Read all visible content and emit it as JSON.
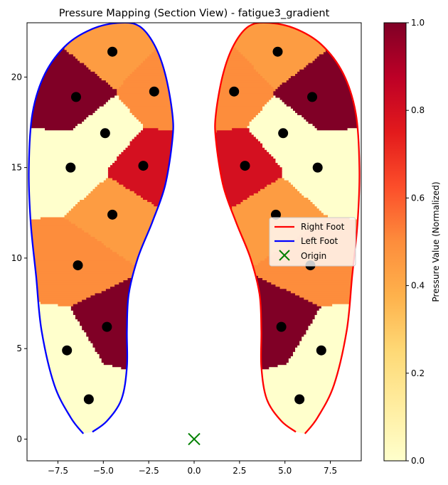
{
  "chart_data": {
    "type": "heatmap",
    "title": "Pressure Mapping (Section View) - fatigue3_gradient",
    "xlim": [
      -9.2,
      9.2
    ],
    "ylim": [
      -1.2,
      23.0
    ],
    "x_ticks": [
      -7.5,
      -5.0,
      -2.5,
      0.0,
      2.5,
      5.0,
      7.5
    ],
    "x_tick_labels": [
      "−7.5",
      "−5.0",
      "−2.5",
      "0.0",
      "2.5",
      "5.0",
      "7.5"
    ],
    "y_ticks": [
      0,
      5,
      10,
      15,
      20
    ],
    "y_tick_labels": [
      "0",
      "5",
      "10",
      "15",
      "20"
    ],
    "grid": false,
    "colorbar": {
      "label": "Pressure Value (Normalized)",
      "range": [
        0.0,
        1.0
      ],
      "ticks": [
        0.0,
        0.2,
        0.4,
        0.6,
        0.8,
        1.0
      ],
      "tick_labels": [
        "0.0",
        "0.2",
        "0.4",
        "0.6",
        "0.8",
        "1.0"
      ],
      "colormap": "YlOrRd",
      "stops": [
        "#ffffcc",
        "#ffeda0",
        "#fed976",
        "#feb24c",
        "#fd8d3c",
        "#fc4e2a",
        "#e31a1c",
        "#bd0026",
        "#800026"
      ]
    },
    "legend": {
      "placement": "center-right",
      "entries": [
        {
          "label": "Right Foot",
          "kind": "line",
          "color": "#ff0000"
        },
        {
          "label": "Left Foot",
          "kind": "line",
          "color": "#0000ff"
        },
        {
          "label": "Origin",
          "kind": "x-marker",
          "color": "#008000"
        }
      ]
    },
    "origin": {
      "x": 0,
      "y": 0
    },
    "sensors": [
      {
        "foot": "left",
        "x": -4.5,
        "y": 21.4,
        "value": 0.45
      },
      {
        "foot": "left",
        "x": -6.5,
        "y": 18.9,
        "value": 1.0
      },
      {
        "foot": "left",
        "x": -2.2,
        "y": 19.2,
        "value": 0.5
      },
      {
        "foot": "left",
        "x": -4.9,
        "y": 16.9,
        "value": 0.0
      },
      {
        "foot": "left",
        "x": -6.8,
        "y": 15.0,
        "value": 0.0
      },
      {
        "foot": "left",
        "x": -2.8,
        "y": 15.1,
        "value": 0.8
      },
      {
        "foot": "left",
        "x": -4.5,
        "y": 12.4,
        "value": 0.45
      },
      {
        "foot": "left",
        "x": -6.4,
        "y": 9.6,
        "value": 0.5
      },
      {
        "foot": "left",
        "x": -4.8,
        "y": 6.2,
        "value": 1.0
      },
      {
        "foot": "left",
        "x": -7.0,
        "y": 4.9,
        "value": 0.0
      },
      {
        "foot": "left",
        "x": -5.8,
        "y": 2.2,
        "value": 0.0
      },
      {
        "foot": "right",
        "x": 4.6,
        "y": 21.4,
        "value": 0.45
      },
      {
        "foot": "right",
        "x": 6.5,
        "y": 18.9,
        "value": 1.0
      },
      {
        "foot": "right",
        "x": 2.2,
        "y": 19.2,
        "value": 0.5
      },
      {
        "foot": "right",
        "x": 4.9,
        "y": 16.9,
        "value": 0.0
      },
      {
        "foot": "right",
        "x": 6.8,
        "y": 15.0,
        "value": 0.0
      },
      {
        "foot": "right",
        "x": 2.8,
        "y": 15.1,
        "value": 0.8
      },
      {
        "foot": "right",
        "x": 4.5,
        "y": 12.4,
        "value": 0.45
      },
      {
        "foot": "right",
        "x": 6.4,
        "y": 9.6,
        "value": 0.5
      },
      {
        "foot": "right",
        "x": 4.8,
        "y": 6.2,
        "value": 1.0
      },
      {
        "foot": "right",
        "x": 7.0,
        "y": 4.9,
        "value": 0.0
      },
      {
        "foot": "right",
        "x": 5.8,
        "y": 2.2,
        "value": 0.0
      }
    ],
    "left_foot_outline": [
      [
        -6.1,
        0.3
      ],
      [
        -6.8,
        1.2
      ],
      [
        -7.7,
        3.0
      ],
      [
        -8.4,
        6.0
      ],
      [
        -8.7,
        9.0
      ],
      [
        -9.0,
        12.0
      ],
      [
        -9.1,
        15.0
      ],
      [
        -8.9,
        18.0
      ],
      [
        -8.2,
        20.2
      ],
      [
        -7.0,
        21.8
      ],
      [
        -5.5,
        22.7
      ],
      [
        -4.0,
        23.0
      ],
      [
        -3.0,
        22.8
      ],
      [
        -2.2,
        21.8
      ],
      [
        -1.6,
        20.2
      ],
      [
        -1.2,
        18.0
      ],
      [
        -1.2,
        16.5
      ],
      [
        -1.6,
        14.0
      ],
      [
        -2.3,
        12.0
      ],
      [
        -3.1,
        10.0
      ],
      [
        -3.6,
        8.0
      ],
      [
        -3.7,
        6.0
      ],
      [
        -3.7,
        4.0
      ],
      [
        -4.0,
        2.2
      ],
      [
        -4.8,
        1.0
      ],
      [
        -5.6,
        0.4
      ]
    ],
    "right_foot_outline": [
      [
        6.1,
        0.3
      ],
      [
        6.8,
        1.2
      ],
      [
        7.7,
        3.0
      ],
      [
        8.4,
        6.0
      ],
      [
        8.7,
        9.0
      ],
      [
        9.0,
        12.0
      ],
      [
        9.1,
        15.0
      ],
      [
        8.9,
        18.0
      ],
      [
        8.2,
        20.2
      ],
      [
        7.0,
        21.8
      ],
      [
        5.5,
        22.7
      ],
      [
        4.0,
        23.0
      ],
      [
        3.0,
        22.8
      ],
      [
        2.2,
        21.8
      ],
      [
        1.6,
        20.2
      ],
      [
        1.2,
        18.0
      ],
      [
        1.2,
        16.5
      ],
      [
        1.6,
        14.0
      ],
      [
        2.3,
        12.0
      ],
      [
        3.1,
        10.0
      ],
      [
        3.6,
        8.0
      ],
      [
        3.7,
        6.0
      ],
      [
        3.7,
        4.0
      ],
      [
        4.0,
        2.2
      ],
      [
        4.8,
        1.0
      ],
      [
        5.6,
        0.4
      ]
    ]
  }
}
